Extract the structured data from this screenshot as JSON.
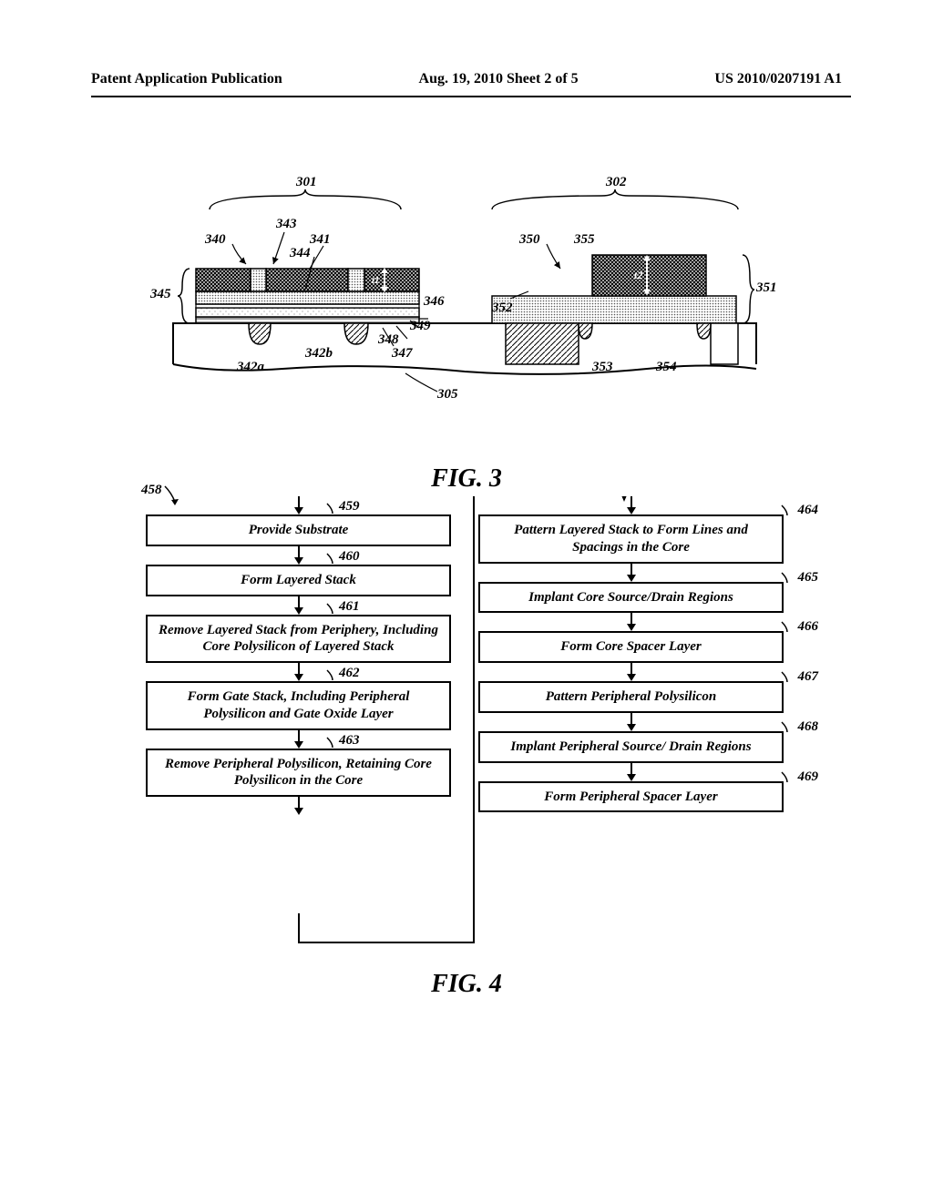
{
  "header": {
    "left": "Patent Application Publication",
    "center": "Aug. 19, 2010  Sheet 2 of 5",
    "right": "US 2010/0207191 A1"
  },
  "fig3": {
    "caption": "FIG. 3",
    "labels": {
      "reg301": "301",
      "reg302": "302",
      "l340": "340",
      "l341": "341",
      "l342a": "342a",
      "l342b": "342b",
      "l343": "343",
      "l344": "344",
      "l345": "345",
      "l346": "346",
      "l347": "347",
      "l348": "348",
      "l349": "349",
      "l350": "350",
      "l351": "351",
      "l352": "352",
      "l353": "353",
      "l354": "354",
      "l355": "355",
      "l305": "305",
      "t1": "t1",
      "t2": "t2"
    },
    "colors": {
      "dark_hatch": "#3a3a3a",
      "mid_hatch": "#888888",
      "light_dots": "#d0d0d0",
      "diag_hatch": "#666666",
      "outline": "#000000",
      "bg": "#ffffff"
    }
  },
  "fig4": {
    "caption": "FIG. 4",
    "start_label": "458",
    "left_col": [
      {
        "id": "459",
        "text": "Provide Substrate"
      },
      {
        "id": "460",
        "text": "Form Layered Stack"
      },
      {
        "id": "461",
        "text": "Remove Layered Stack from Periphery, Including Core Polysilicon of Layered Stack"
      },
      {
        "id": "462",
        "text": "Form Gate Stack, Including Peripheral Polysilicon and Gate Oxide Layer"
      },
      {
        "id": "463",
        "text": "Remove Peripheral Polysilicon, Retaining Core Polysilicon in the Core"
      }
    ],
    "right_col": [
      {
        "id": "464",
        "text": "Pattern Layered Stack to Form Lines and Spacings in the Core"
      },
      {
        "id": "465",
        "text": "Implant Core Source/Drain Regions"
      },
      {
        "id": "466",
        "text": "Form Core Spacer Layer"
      },
      {
        "id": "467",
        "text": "Pattern Peripheral Polysilicon"
      },
      {
        "id": "468",
        "text": "Implant Peripheral Source/ Drain Regions"
      },
      {
        "id": "469",
        "text": "Form Peripheral Spacer Layer"
      }
    ]
  }
}
